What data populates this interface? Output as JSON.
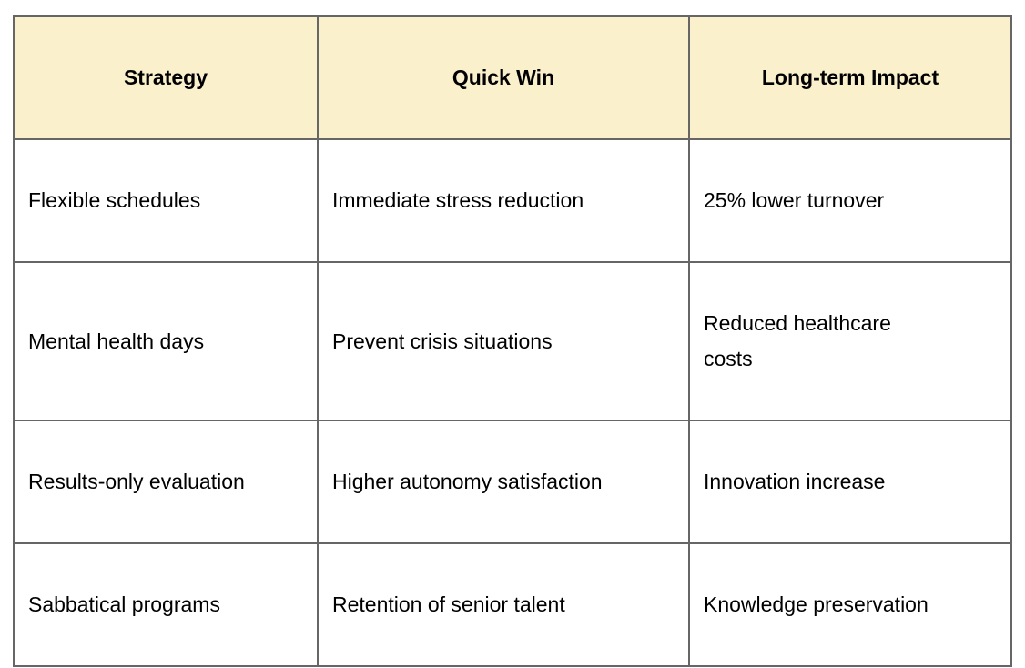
{
  "table": {
    "columns": [
      "Strategy",
      "Quick Win",
      "Long-term Impact"
    ],
    "rows": [
      [
        "Flexible schedules",
        "Immediate stress reduction",
        "25% lower turnover"
      ],
      [
        "Mental health days",
        "Prevent crisis situations",
        "Reduced healthcare\ncosts"
      ],
      [
        "Results-only evaluation",
        "Higher autonomy satisfaction",
        "Innovation increase"
      ],
      [
        "Sabbatical programs",
        "Retention of senior talent",
        "Knowledge preservation"
      ]
    ],
    "colors": {
      "header_bg": "#faf0cc",
      "border": "#666666",
      "text": "#000000",
      "page_bg": "#ffffff"
    }
  }
}
